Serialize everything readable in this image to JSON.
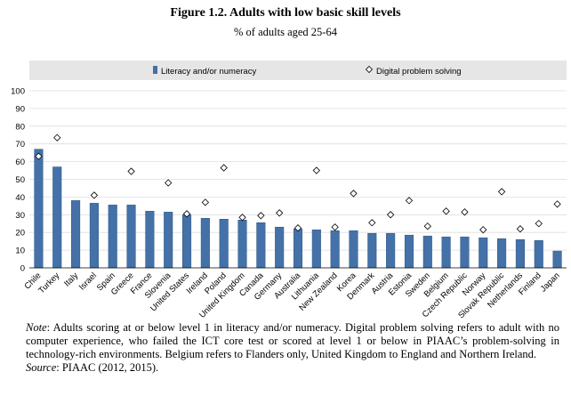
{
  "figure": {
    "title": "Figure 1.2. Adults with low basic skill levels",
    "subtitle": "% of adults aged 25-64"
  },
  "legend": {
    "bar_label": "Literacy and/or numeracy",
    "diamond_label": "Digital problem solving"
  },
  "colors": {
    "bar": "#4472a8",
    "bar_edge": "#2d5585",
    "legend_bg": "#e6e6e6",
    "grid": "#dddddd"
  },
  "chart_data": {
    "type": "bar",
    "ylim": [
      0,
      100
    ],
    "yticks": [
      0,
      10,
      20,
      30,
      40,
      50,
      60,
      70,
      80,
      90,
      100
    ],
    "grid": true,
    "legend_position": "top",
    "categories": [
      "Chile",
      "Turkey",
      "Italy",
      "Israel",
      "Spain",
      "Greece",
      "France",
      "Slovenia",
      "United States",
      "Ireland",
      "Poland",
      "United Kingdom",
      "Canada",
      "Germany",
      "Australia",
      "Lithuania",
      "New Zealand",
      "Korea",
      "Denmark",
      "Austria",
      "Estonia",
      "Sweden",
      "Belgium",
      "Czech Republic",
      "Norway",
      "Slovak Republic",
      "Netherlands",
      "Finland",
      "Japan"
    ],
    "series": [
      {
        "name": "Literacy and/or numeracy",
        "type": "bar",
        "values": [
          67,
          57,
          38,
          36.5,
          35.5,
          35.5,
          32,
          31.5,
          30,
          28,
          27.5,
          27,
          25.5,
          23,
          22,
          21.5,
          21,
          21,
          19.5,
          19.5,
          18.5,
          18,
          17.5,
          17.5,
          17,
          16.5,
          16,
          15.5,
          9.5
        ]
      },
      {
        "name": "Digital problem solving",
        "type": "scatter",
        "marker": "diamond",
        "values": [
          63,
          73.5,
          null,
          41,
          null,
          54.5,
          null,
          48,
          30.5,
          37,
          56.5,
          28.5,
          29.5,
          31,
          22.5,
          55,
          23,
          42,
          25.5,
          30,
          38,
          23.5,
          32,
          31.5,
          21.5,
          43,
          22,
          25,
          36
        ]
      }
    ]
  },
  "note": {
    "label": "Note",
    "text": ": Adults scoring at or below level 1 in literacy and/or numeracy. Digital problem solving refers to adult with no computer experience, who failed the ICT core test or scored at level 1 or below in PIAAC’s problem-solving in technology-rich environments. Belgium refers to Flanders only, United Kingdom to England and Northern Ireland.",
    "source_label": "Source",
    "source_text": ": PIAAC (2012, 2015)."
  }
}
